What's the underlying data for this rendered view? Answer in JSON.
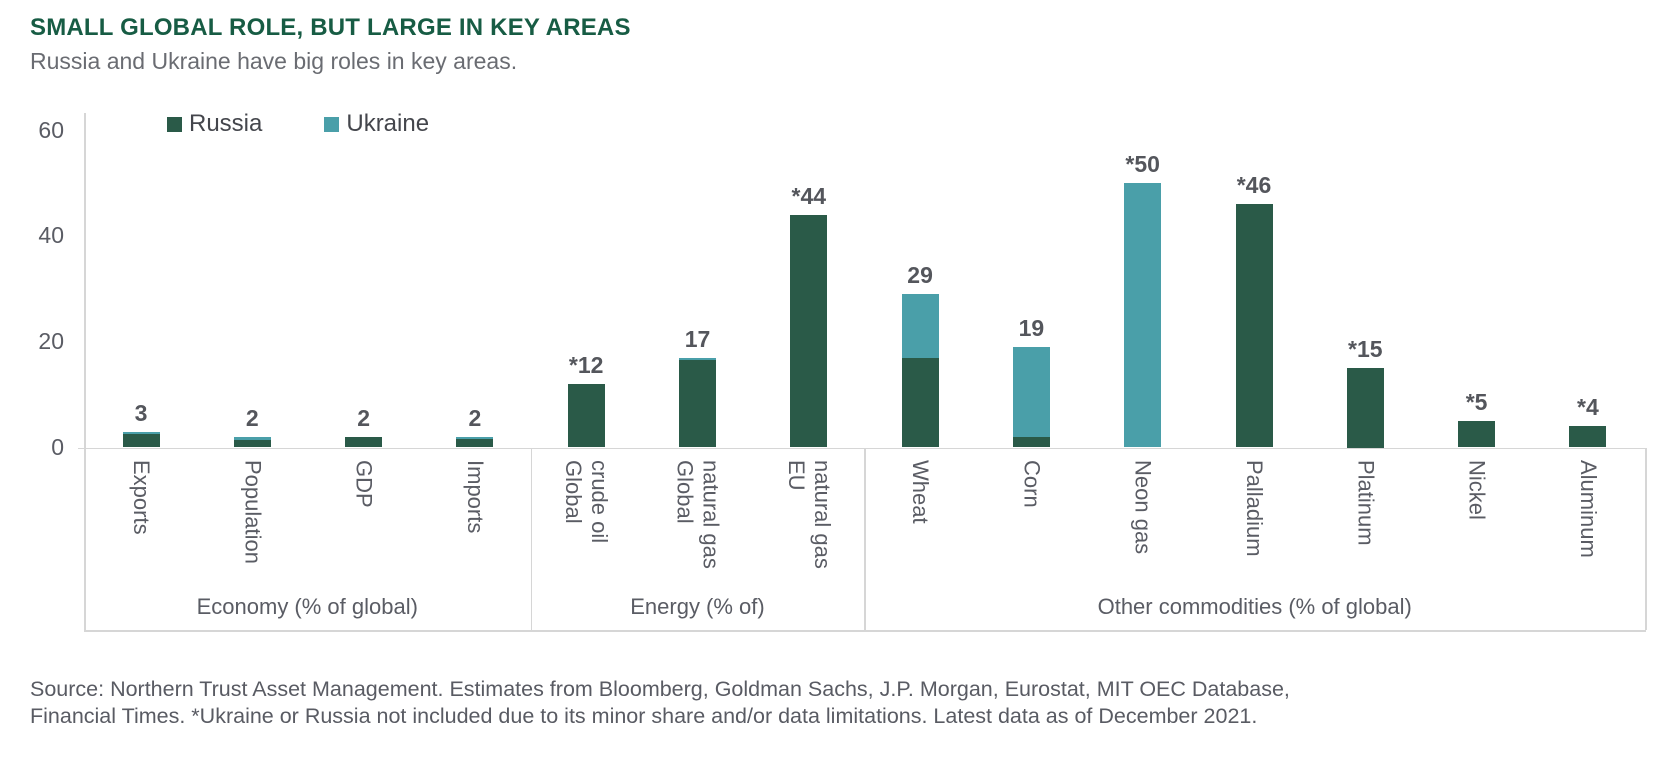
{
  "header": {
    "title": "SMALL GLOBAL ROLE, BUT LARGE IN KEY AREAS",
    "subtitle": "Russia and Ukraine have big roles in key areas."
  },
  "legend": {
    "items": [
      {
        "label": "Russia",
        "color": "#2A5A48"
      },
      {
        "label": "Ukraine",
        "color": "#4A9FA9"
      }
    ]
  },
  "footer": {
    "line1": "Source: Northern Trust Asset Management. Estimates from Bloomberg, Goldman Sachs, J.P. Morgan, Eurostat, MIT OEC Database,",
    "line2": "Financial Times. *Ukraine or Russia not included due to its minor share and/or data limitations. Latest data as of December 2021."
  },
  "chart_data": {
    "type": "bar",
    "stacked": true,
    "title": "SMALL GLOBAL ROLE, BUT LARGE IN KEY AREAS",
    "ylim": [
      0,
      60
    ],
    "yticks": [
      0,
      20,
      40,
      60
    ],
    "grid": false,
    "legend_position": "top-left",
    "series_names": [
      "Russia",
      "Ukraine"
    ],
    "colors": {
      "Russia": "#2A5A48",
      "Ukraine": "#4A9FA9"
    },
    "groups": [
      {
        "label": "Economy (% of global)",
        "bars": [
          {
            "category": "Exports",
            "value_label": "3",
            "Russia": 2.6,
            "Ukraine": 0.4
          },
          {
            "category": "Population",
            "value_label": "2",
            "Russia": 1.4,
            "Ukraine": 0.6
          },
          {
            "category": "GDP",
            "value_label": "2",
            "Russia": 2,
            "Ukraine": 0
          },
          {
            "category": "Imports",
            "value_label": "2",
            "Russia": 1.6,
            "Ukraine": 0.4
          }
        ]
      },
      {
        "label": "Energy (% of)",
        "bars": [
          {
            "category": "Global\ncrude oil",
            "value_label": "*12",
            "Russia": 12,
            "Ukraine": 0
          },
          {
            "category": "Global\nnatural gas",
            "value_label": "17",
            "Russia": 16.5,
            "Ukraine": 0.5
          },
          {
            "category": "EU\nnatural gas",
            "value_label": "*44",
            "Russia": 44,
            "Ukraine": 0
          }
        ]
      },
      {
        "label": "Other commodities (% of global)",
        "bars": [
          {
            "category": "Wheat",
            "value_label": "29",
            "Russia": 17,
            "Ukraine": 12
          },
          {
            "category": "Corn",
            "value_label": "19",
            "Russia": 2,
            "Ukraine": 17
          },
          {
            "category": "Neon gas",
            "value_label": "*50",
            "Russia": 0,
            "Ukraine": 50
          },
          {
            "category": "Palladium",
            "value_label": "*46",
            "Russia": 46,
            "Ukraine": 0
          },
          {
            "category": "Platinum",
            "value_label": "*15",
            "Russia": 15,
            "Ukraine": 0
          },
          {
            "category": "Nickel",
            "value_label": "*5",
            "Russia": 5,
            "Ukraine": 0
          },
          {
            "category": "Aluminum",
            "value_label": "*4",
            "Russia": 4,
            "Ukraine": 0
          }
        ]
      }
    ]
  }
}
